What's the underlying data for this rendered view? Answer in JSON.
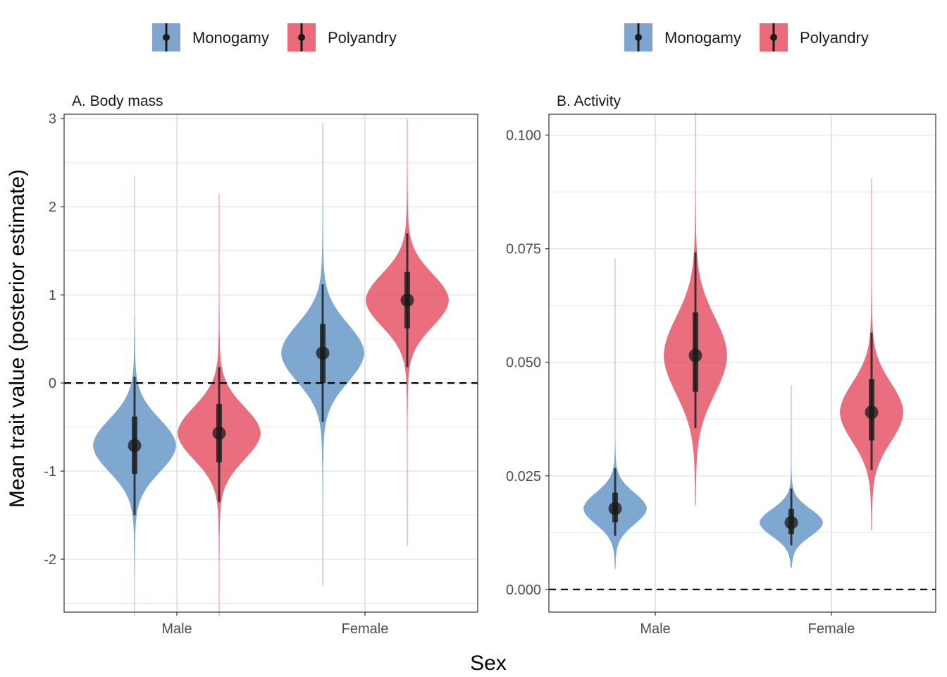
{
  "axis": {
    "x_title": "Sex",
    "y_title": "Mean trait value (posterior estimate)"
  },
  "legend": {
    "position": "top",
    "entries": [
      {
        "label": "Monogamy",
        "color": "#5b8fc4"
      },
      {
        "label": "Polyandry",
        "color": "#e3475a"
      }
    ]
  },
  "colors": {
    "Monogamy": "#5b8fc4",
    "Polyandry": "#e3475a",
    "point": "#1a1a1a",
    "reference_line": "#000000",
    "grid": "#e5e5e5",
    "panel_border": "#333333"
  },
  "chart_data": [
    {
      "type": "violin",
      "title": "A. Body mass",
      "categories": [
        "Male",
        "Female"
      ],
      "ylim": [
        -2.6,
        3.05
      ],
      "y_ticks": [
        -2,
        -1,
        0,
        1,
        2,
        3
      ],
      "y_tick_labels": [
        "-2",
        "-1",
        "0",
        "1",
        "2",
        "3"
      ],
      "y_minor_ticks": [
        -2.5,
        -1.5,
        -0.5,
        0.5,
        1.5,
        2.5
      ],
      "reference_line": 0,
      "series": [
        {
          "name": "Monogamy",
          "values": [
            {
              "category": "Male",
              "median": -0.71,
              "q_lo": -1.03,
              "q_hi": -0.38,
              "ci_lo": -1.5,
              "ci_hi": 0.07,
              "tail_lo": -2.65,
              "tail_hi": 2.35,
              "sd": 0.3
            },
            {
              "category": "Female",
              "median": 0.34,
              "q_lo": 0.0,
              "q_hi": 0.67,
              "ci_lo": -0.44,
              "ci_hi": 1.12,
              "tail_lo": -2.3,
              "tail_hi": 2.95,
              "sd": 0.33
            }
          ]
        },
        {
          "name": "Polyandry",
          "values": [
            {
              "category": "Male",
              "median": -0.57,
              "q_lo": -0.9,
              "q_hi": -0.24,
              "ci_lo": -1.35,
              "ci_hi": 0.18,
              "tail_lo": -2.65,
              "tail_hi": 2.15,
              "sd": 0.3
            },
            {
              "category": "Female",
              "median": 0.94,
              "q_lo": 0.62,
              "q_hi": 1.26,
              "ci_lo": 0.18,
              "ci_hi": 1.7,
              "tail_lo": -1.85,
              "tail_hi": 3.0,
              "sd": 0.3
            }
          ]
        }
      ]
    },
    {
      "type": "violin",
      "title": "B. Activity",
      "categories": [
        "Male",
        "Female"
      ],
      "ylim": [
        -0.005,
        0.1046
      ],
      "y_ticks": [
        0.0,
        0.025,
        0.05,
        0.075,
        0.1
      ],
      "y_tick_labels": [
        "0.000",
        "0.025",
        "0.050",
        "0.075",
        "0.100"
      ],
      "y_minor_ticks": [
        0.0125,
        0.0375,
        0.0625,
        0.0875
      ],
      "reference_line": 0,
      "series": [
        {
          "name": "Monogamy",
          "values": [
            {
              "category": "Male",
              "median": 0.0178,
              "q_lo": 0.0148,
              "q_hi": 0.0213,
              "ci_lo": 0.0118,
              "ci_hi": 0.0267,
              "tail_lo": 0.0045,
              "tail_hi": 0.073,
              "sd": 0.0035
            },
            {
              "category": "Female",
              "median": 0.0147,
              "q_lo": 0.0122,
              "q_hi": 0.0177,
              "ci_lo": 0.0097,
              "ci_hi": 0.0222,
              "tail_lo": 0.0048,
              "tail_hi": 0.045,
              "sd": 0.003
            }
          ]
        },
        {
          "name": "Polyandry",
          "values": [
            {
              "category": "Male",
              "median": 0.0515,
              "q_lo": 0.0435,
              "q_hi": 0.061,
              "ci_lo": 0.0355,
              "ci_hi": 0.0742,
              "tail_lo": 0.0185,
              "tail_hi": 0.105,
              "sd": 0.0085
            },
            {
              "category": "Female",
              "median": 0.039,
              "q_lo": 0.0328,
              "q_hi": 0.0463,
              "ci_lo": 0.0263,
              "ci_hi": 0.0565,
              "tail_lo": 0.013,
              "tail_hi": 0.0905,
              "sd": 0.0065
            }
          ]
        }
      ]
    }
  ]
}
